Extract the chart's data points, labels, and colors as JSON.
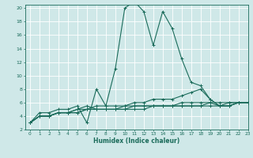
{
  "xlabel": "Humidex (Indice chaleur)",
  "ylabel": "",
  "xlim": [
    -0.5,
    23
  ],
  "ylim": [
    2,
    20.5
  ],
  "yticks": [
    2,
    4,
    6,
    8,
    10,
    12,
    14,
    16,
    18,
    20
  ],
  "xticks": [
    0,
    1,
    2,
    3,
    4,
    5,
    6,
    7,
    8,
    9,
    10,
    11,
    12,
    13,
    14,
    15,
    16,
    17,
    18,
    19,
    20,
    21,
    22,
    23
  ],
  "background_color": "#cfe8e8",
  "grid_color": "#b8d8d8",
  "line_color": "#1a6b5a",
  "series": [
    [
      3.0,
      4.5,
      4.5,
      5.0,
      5.0,
      5.5,
      3.0,
      8.0,
      5.5,
      11.0,
      20.0,
      21.0,
      19.5,
      14.5,
      19.5,
      17.0,
      12.5,
      9.0,
      8.5,
      6.5,
      5.5,
      6.0,
      6.0,
      6.0
    ],
    [
      3.0,
      4.0,
      4.0,
      4.5,
      4.5,
      5.0,
      5.0,
      5.5,
      5.5,
      5.5,
      5.5,
      6.0,
      6.0,
      6.5,
      6.5,
      6.5,
      7.0,
      7.5,
      8.0,
      6.5,
      5.5,
      5.5,
      6.0,
      6.0
    ],
    [
      3.0,
      4.0,
      4.0,
      4.5,
      4.5,
      4.5,
      5.0,
      5.0,
      5.0,
      5.0,
      5.0,
      5.5,
      5.5,
      5.5,
      5.5,
      5.5,
      6.0,
      6.0,
      6.0,
      6.0,
      5.5,
      5.5,
      6.0,
      6.0
    ],
    [
      3.0,
      4.0,
      4.0,
      4.5,
      4.5,
      4.5,
      5.0,
      5.0,
      5.0,
      5.0,
      5.0,
      5.0,
      5.0,
      5.5,
      5.5,
      5.5,
      5.5,
      5.5,
      5.5,
      5.5,
      5.5,
      5.5,
      6.0,
      6.0
    ],
    [
      3.0,
      4.0,
      4.0,
      4.5,
      4.5,
      5.0,
      5.5,
      5.0,
      5.0,
      5.0,
      5.5,
      5.5,
      5.5,
      5.5,
      5.5,
      5.5,
      5.5,
      5.5,
      5.5,
      6.0,
      6.0,
      6.0,
      6.0,
      6.0
    ]
  ]
}
